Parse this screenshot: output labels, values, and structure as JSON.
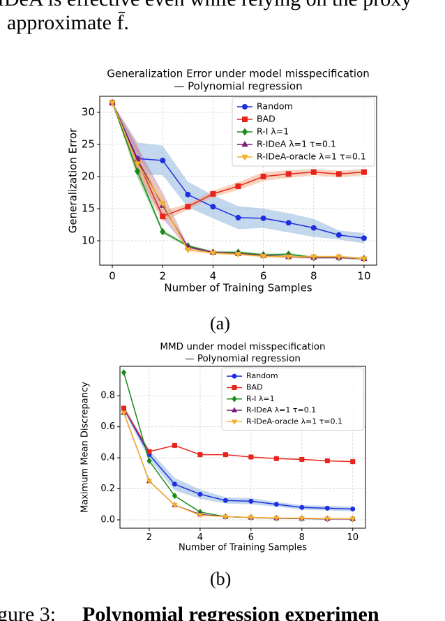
{
  "text_top": [
    "IDeA is effective even while relying on the proxy",
    "approximate f̄."
  ],
  "captions": [
    "(a)",
    "(b)"
  ],
  "text_bottom": [
    "gure 3:",
    "Polynomial regression experimen"
  ],
  "chart_data": [
    {
      "type": "line",
      "title": [
        "Generalization Error under model misspecification",
        "— Polynomial regression"
      ],
      "x_label": "Number of Training Samples",
      "y_label": "Generalization Error",
      "x": [
        0,
        1,
        2,
        3,
        4,
        5,
        6,
        7,
        8,
        9,
        10
      ],
      "xlim": [
        -0.5,
        10.5
      ],
      "xticks": [
        0,
        2,
        4,
        6,
        8,
        10
      ],
      "ylim": [
        6.2,
        32.5
      ],
      "yticks": [
        10,
        15,
        20,
        25,
        30
      ],
      "grid": true,
      "legend": "upper right",
      "series": [
        {
          "name": "Random",
          "color": "#1f2fe0",
          "band_color": "#7aa6d6",
          "marker": "o",
          "values": [
            31.5,
            22.8,
            22.5,
            17.2,
            15.3,
            13.6,
            13.5,
            12.8,
            12.0,
            10.9,
            10.4
          ],
          "std": [
            0,
            2.5,
            2.3,
            2.0,
            1.8,
            1.8,
            1.5,
            1.5,
            1.4,
            0.7,
            0.8
          ]
        },
        {
          "name": "BAD",
          "color": "#e8231c",
          "band_color": "#f0a070",
          "marker": "s",
          "values": [
            31.5,
            22.5,
            13.8,
            15.3,
            17.3,
            18.5,
            20.0,
            20.4,
            20.7,
            20.4,
            20.7
          ],
          "std": [
            0,
            2.5,
            0.8,
            0.5,
            0.5,
            0.6,
            0.7,
            0.6,
            0.5,
            0.5,
            0.5
          ]
        },
        {
          "name": "R-I λ=1",
          "color": "#1a8a1a",
          "band_color": "#70c070",
          "marker": "D",
          "values": [
            31.5,
            20.8,
            11.4,
            9.2,
            8.2,
            8.2,
            7.8,
            7.9,
            7.4,
            7.4,
            7.2
          ],
          "std": [
            0,
            1.0,
            0.3,
            0.2,
            0.2,
            0.2,
            0.2,
            0.2,
            0.2,
            0.2,
            0.2
          ]
        },
        {
          "name": "R-IDeA λ=1 τ=0.1",
          "color": "#7a1a7a",
          "band_color": "#b070c0",
          "marker": "^",
          "values": [
            31.5,
            22.6,
            15.5,
            9.0,
            8.2,
            8.0,
            7.7,
            7.5,
            7.4,
            7.4,
            7.2
          ],
          "std": [
            0,
            2.0,
            2.0,
            0.3,
            0.2,
            0.2,
            0.2,
            0.2,
            0.2,
            0.2,
            0.2
          ]
        },
        {
          "name": "R-IDeA-oracle λ=1 τ=0.1",
          "color": "#f5b02a",
          "band_color": "#f8d080",
          "marker": "v",
          "values": [
            31.5,
            22.0,
            15.8,
            8.6,
            8.1,
            7.9,
            7.6,
            7.5,
            7.5,
            7.5,
            7.2
          ],
          "std": [
            0,
            1.5,
            1.5,
            0.3,
            0.2,
            0.2,
            0.2,
            0.2,
            0.2,
            0.2,
            0.2
          ]
        }
      ]
    },
    {
      "type": "line",
      "title": [
        "MMD under model misspecification",
        "— Polynomial regression"
      ],
      "x_label": "Number of Training Samples",
      "y_label": "Maximum Mean Discrepancy",
      "x": [
        1,
        2,
        3,
        4,
        5,
        6,
        7,
        8,
        9,
        10
      ],
      "xlim": [
        0.85,
        10.5
      ],
      "xticks": [
        2,
        4,
        6,
        8,
        10
      ],
      "ylim": [
        -0.054,
        0.99
      ],
      "yticks": [
        {
          "value": 0,
          "label": "0.0"
        },
        0.2,
        0.4,
        0.6,
        0.8
      ],
      "grid": true,
      "legend": "upper right",
      "series": [
        {
          "name": "Random",
          "color": "#1f2fe0",
          "band_color": "#7aa6d6",
          "marker": "o",
          "values": [
            0.72,
            0.42,
            0.23,
            0.165,
            0.125,
            0.12,
            0.1,
            0.08,
            0.075,
            0.07
          ],
          "std": [
            0.02,
            0.03,
            0.04,
            0.03,
            0.02,
            0.02,
            0.015,
            0.015,
            0.015,
            0.015
          ]
        },
        {
          "name": "BAD",
          "color": "#e8231c",
          "band_color": "#f0a070",
          "marker": "s",
          "values": [
            0.72,
            0.44,
            0.48,
            0.42,
            0.42,
            0.405,
            0.395,
            0.39,
            0.38,
            0.375
          ]
        },
        {
          "name": "R-I λ=1",
          "color": "#1a8a1a",
          "band_color": "#70c070",
          "marker": "D",
          "values": [
            0.95,
            0.38,
            0.155,
            0.05,
            0.02,
            0.015,
            0.01,
            0.008,
            0.006,
            0.005
          ]
        },
        {
          "name": "R-IDeA λ=1 τ=0.1",
          "color": "#7a1a7a",
          "band_color": "#b070c0",
          "marker": "^",
          "values": [
            0.69,
            0.25,
            0.095,
            0.035,
            0.02,
            0.015,
            0.01,
            0.008,
            0.006,
            0.005
          ]
        },
        {
          "name": "R-IDeA-oracle λ=1 τ=0.1",
          "color": "#f5b02a",
          "band_color": "#f8d080",
          "marker": "v",
          "values": [
            0.69,
            0.25,
            0.095,
            0.03,
            0.02,
            0.016,
            0.012,
            0.01,
            0.008,
            0.007
          ]
        }
      ]
    }
  ]
}
